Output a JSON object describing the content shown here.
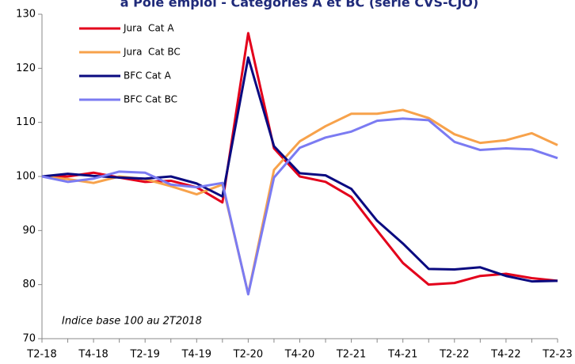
{
  "chart_data": {
    "type": "line",
    "title": "à Pôle emploi - Catégories A et BC (série CVS-CJO)",
    "annotation": "Indice base 100 au 2T2018",
    "categories": [
      "T2-18",
      null,
      "T4-18",
      null,
      "T2-19",
      null,
      "T4-19",
      null,
      "T2-20",
      null,
      "T4-20",
      null,
      "T2-21",
      null,
      "T4-21",
      null,
      "T2-22",
      null,
      "T4-22",
      null,
      "T2-23"
    ],
    "series": [
      {
        "name": "Jura  Cat A",
        "color": "#e3001b",
        "values": [
          100,
          100,
          100.7,
          99.8,
          99,
          99.2,
          98,
          95.2,
          126.5,
          105.2,
          100,
          99,
          96.2,
          90,
          84,
          80,
          80.3,
          81.6,
          82,
          81.2,
          80.7
        ]
      },
      {
        "name": "Jura  Cat BC",
        "color": "#f7a24b",
        "values": [
          100,
          99.5,
          98.8,
          100,
          99.5,
          98.2,
          96.7,
          98.5,
          78.3,
          101.2,
          106.5,
          109.3,
          111.6,
          111.6,
          112.3,
          110.8,
          107.8,
          106.2,
          106.7,
          108,
          105.8
        ]
      },
      {
        "name": "BFC Cat A",
        "color": "#0a0a80",
        "values": [
          100,
          100.5,
          100.1,
          99.8,
          99.6,
          100,
          98.7,
          96.3,
          122,
          105.6,
          100.6,
          100.2,
          97.7,
          91.8,
          87.6,
          82.9,
          82.8,
          83.2,
          81.6,
          80.6,
          80.7
        ]
      },
      {
        "name": "BFC Cat BC",
        "color": "#7b7bf2",
        "values": [
          100,
          99,
          99.6,
          100.9,
          100.7,
          98.5,
          98,
          98.8,
          78.2,
          99.8,
          105.3,
          107.2,
          108.3,
          110.3,
          110.7,
          110.4,
          106.4,
          104.9,
          105.2,
          105,
          103.4
        ]
      }
    ],
    "ylim": [
      70,
      130
    ],
    "yticks": [
      70,
      80,
      90,
      100,
      110,
      120,
      130
    ],
    "grid": false
  }
}
